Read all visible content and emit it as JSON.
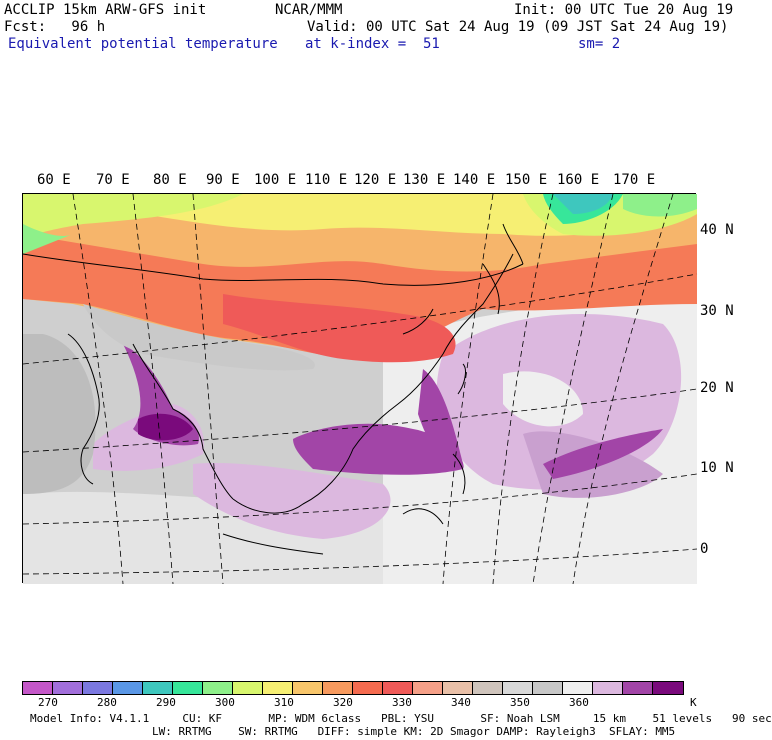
{
  "header": {
    "line1_left": "ACCLIP 15km ARW-GFS init",
    "line1_center": "NCAR/MMM",
    "line1_right": "Init: 00 UTC Tue 20 Aug 19",
    "line2_left": "Fcst:   96 h",
    "line2_right": "Valid: 00 UTC Sat 24 Aug 19 (09 JST Sat 24 Aug 19)",
    "line3_left": "Equivalent potential temperature",
    "line3_center": "at k-index =  51",
    "line3_right": "sm= 2"
  },
  "map": {
    "lon_labels": [
      "60 E",
      "70 E",
      "80 E",
      "90 E",
      "100 E",
      "110 E",
      "120 E",
      "130 E",
      "140 E",
      "150 E",
      "160 E",
      "170 E"
    ],
    "lat_labels": [
      "40 N",
      "30 N",
      "20 N",
      "10 N",
      "0"
    ]
  },
  "legend": {
    "ticks": [
      "270",
      "280",
      "290",
      "300",
      "310",
      "320",
      "330",
      "340",
      "350",
      "360"
    ],
    "unit": "K",
    "colors": [
      "#c457c8",
      "#a26fdb",
      "#7b78e0",
      "#5a97e6",
      "#3ec7be",
      "#37e69a",
      "#8ef08a",
      "#d8f66e",
      "#f6ef73",
      "#f8c66b",
      "#f79a5e",
      "#f56b4f",
      "#ef5a58",
      "#f5a088",
      "#e9c0a8",
      "#cfc4bc",
      "#d8d8d8",
      "#c7c7c7",
      "#efefef",
      "#dcb8df",
      "#a245a7",
      "#7a0a7c"
    ]
  },
  "footer": {
    "line1": "Model Info: V4.1.1     CU: KF       MP: WDM 6class   PBL: YSU       SF: Noah LSM     15 km    51 levels   90 sec",
    "line2": "LW: RRTMG    SW: RRTMG   DIFF: simple KM: 2D Smagor DAMP: Rayleigh3  SFLAY: MM5"
  }
}
